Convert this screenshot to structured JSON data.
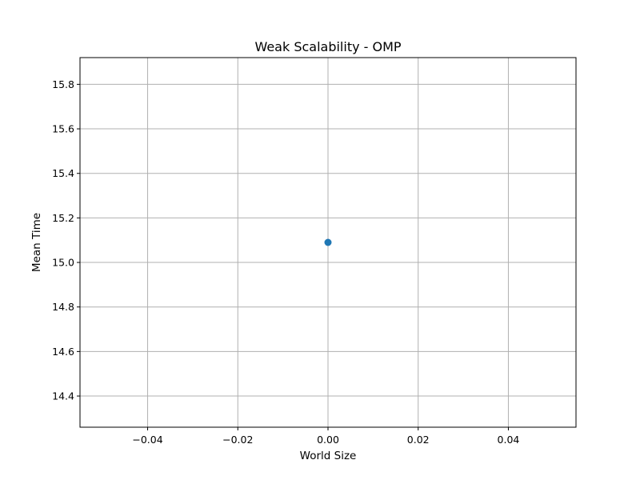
{
  "chart_data": {
    "type": "scatter",
    "title": "Weak Scalability - OMP",
    "xlabel": "World Size",
    "ylabel": "Mean Time",
    "xlim": [
      -0.055,
      0.055
    ],
    "ylim": [
      14.26,
      15.92
    ],
    "xticks": [
      -0.04,
      -0.02,
      0.0,
      0.02,
      0.04
    ],
    "xtick_labels": [
      "−0.04",
      "−0.02",
      "0.00",
      "0.02",
      "0.04"
    ],
    "yticks": [
      14.4,
      14.6,
      14.8,
      15.0,
      15.2,
      15.4,
      15.6,
      15.8
    ],
    "ytick_labels": [
      "14.4",
      "14.6",
      "14.8",
      "15.0",
      "15.2",
      "15.4",
      "15.6",
      "15.8"
    ],
    "grid": true,
    "series": [
      {
        "x": [
          0.0
        ],
        "y": [
          15.09
        ],
        "color": "#1f77b4"
      }
    ]
  }
}
